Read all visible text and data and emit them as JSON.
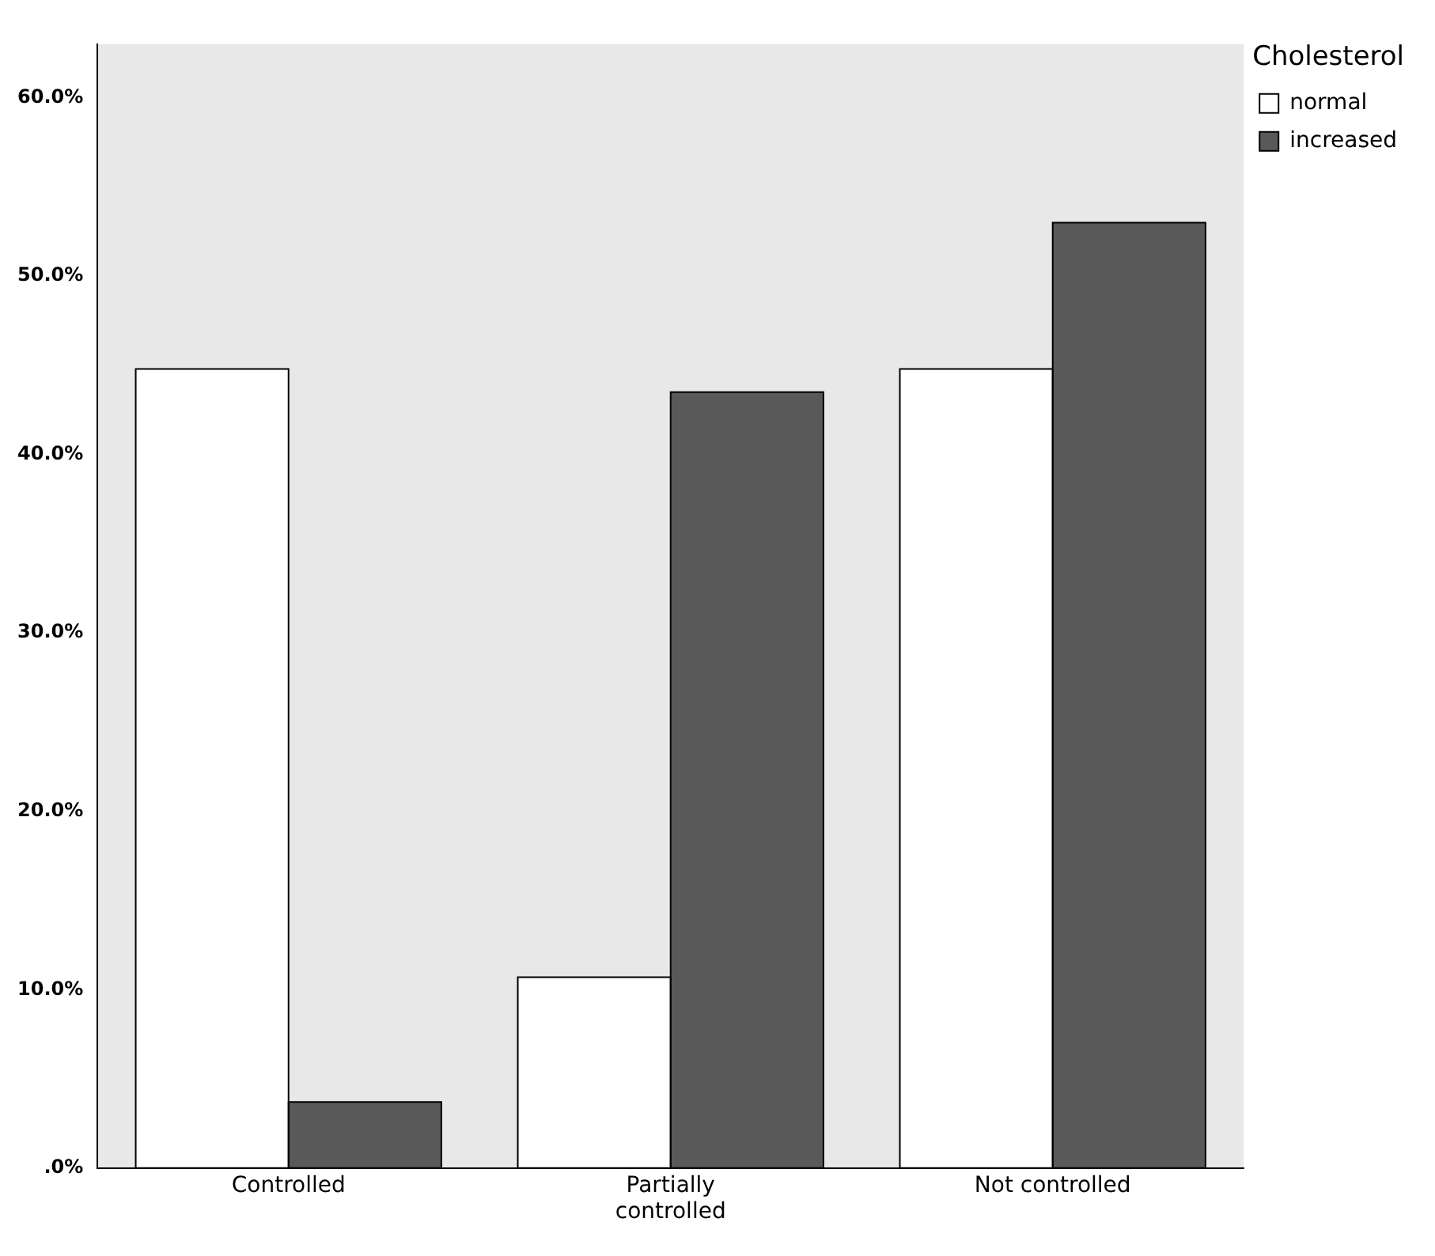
{
  "chart_data": {
    "type": "bar",
    "categories": [
      "Controlled",
      "Partially\ncontrolled",
      "Not controlled"
    ],
    "series": [
      {
        "name": "normal",
        "color": "#ffffff",
        "values": [
          44.8,
          10.7,
          44.8
        ]
      },
      {
        "name": "increased",
        "color": "#595959",
        "values": [
          3.7,
          43.5,
          53.0
        ]
      }
    ],
    "legend_title": "Cholesterol",
    "legend": "top right",
    "grid": false,
    "ylim": [
      0,
      63
    ],
    "yticks": [
      {
        "value": 0,
        "label": ".0%"
      },
      {
        "value": 10,
        "label": "10.0%"
      },
      {
        "value": 20,
        "label": "20.0%"
      },
      {
        "value": 30,
        "label": "30.0%"
      },
      {
        "value": 40,
        "label": "40.0%"
      },
      {
        "value": 50,
        "label": "50.0%"
      },
      {
        "value": 60,
        "label": "60.0%"
      }
    ]
  }
}
